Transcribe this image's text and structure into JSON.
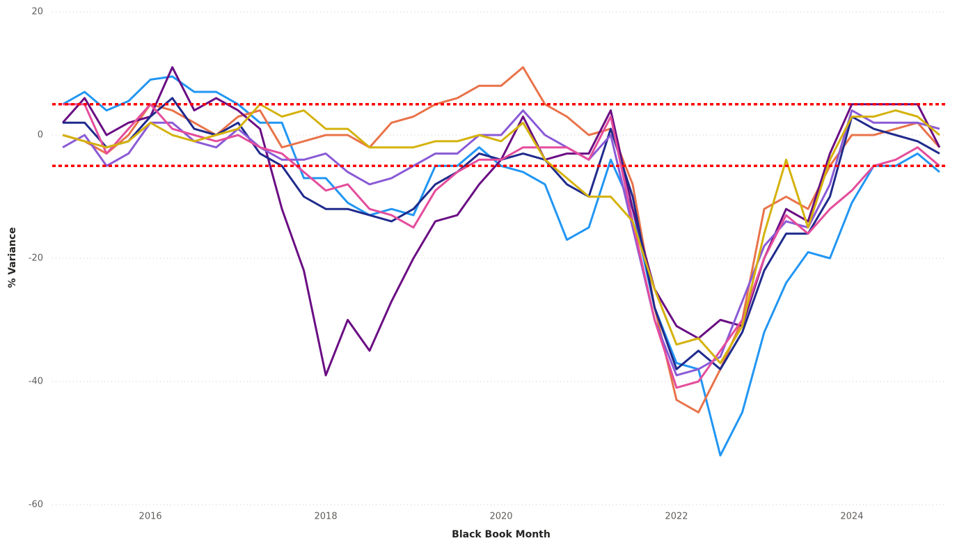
{
  "chart_data": {
    "type": "line",
    "xlabel": "Black Book Month",
    "ylabel": "% Variance",
    "x": [
      2015,
      2015.25,
      2015.5,
      2015.75,
      2016,
      2016.25,
      2016.5,
      2016.75,
      2017,
      2017.25,
      2017.5,
      2017.75,
      2018,
      2018.25,
      2018.5,
      2018.75,
      2019,
      2019.25,
      2019.5,
      2019.75,
      2020,
      2020.25,
      2020.5,
      2020.75,
      2021,
      2021.25,
      2021.5,
      2021.75,
      2022,
      2022.25,
      2022.5,
      2022.75,
      2023,
      2023.25,
      2023.5,
      2023.75,
      2024,
      2024.25,
      2024.5,
      2024.75,
      2025
    ],
    "series": [
      {
        "color": "#2196f3",
        "values": [
          5,
          7,
          4,
          5.5,
          9,
          9.5,
          7,
          7,
          5,
          2,
          2,
          -7,
          -7,
          -11,
          -13,
          -12,
          -13,
          -5,
          -5,
          -2,
          -5,
          -6,
          -8,
          -17,
          -15,
          -4,
          -12,
          -28,
          -37,
          -38,
          -52,
          -45,
          -32,
          -24,
          -19,
          -20,
          -11,
          -5,
          -5,
          -3,
          -6
        ]
      },
      {
        "color": "#e8734a",
        "values": [
          0,
          -1,
          -3,
          0,
          5,
          4,
          2,
          0,
          3,
          4,
          -2,
          -1,
          0,
          0,
          -2,
          2,
          3,
          5,
          6,
          8,
          8,
          11,
          5,
          3,
          0,
          1,
          -8,
          -28,
          -43,
          -45,
          -38,
          -30,
          -12,
          -10,
          -12,
          -5,
          0,
          0,
          1,
          2,
          -2
        ]
      },
      {
        "color": "#6a0d83",
        "values": [
          2,
          6,
          0,
          2,
          3,
          11,
          4,
          6,
          4,
          1,
          -12,
          -22,
          -39,
          -30,
          -35,
          -27,
          -20,
          -14,
          -13,
          -8,
          -4,
          3,
          -4,
          -3,
          -3,
          4,
          -12,
          -25,
          -31,
          -33,
          -30,
          -31,
          -20,
          -12,
          -14,
          -3,
          5,
          5,
          5,
          5,
          -2
        ]
      },
      {
        "color": "#1f2a8c",
        "values": [
          2,
          2,
          -2,
          -1,
          3,
          6,
          1,
          0,
          2,
          -3,
          -5,
          -10,
          -12,
          -12,
          -13,
          -14,
          -12,
          -8,
          -6,
          -3,
          -4,
          -3,
          -4,
          -8,
          -10,
          1,
          -10,
          -28,
          -38,
          -35,
          -38,
          -32,
          -22,
          -16,
          -16,
          -10,
          3,
          1,
          0,
          -1,
          -3
        ]
      },
      {
        "color": "#8a5ad6",
        "values": [
          -2,
          0,
          -5,
          -3,
          2,
          2,
          -1,
          -2,
          1,
          -2,
          -4,
          -4,
          -3,
          -6,
          -8,
          -7,
          -5,
          -3,
          -3,
          0,
          0,
          4,
          0,
          -2,
          -4,
          0,
          -15,
          -30,
          -39,
          -38,
          -36,
          -27,
          -18,
          -14,
          -15,
          -8,
          4,
          2,
          2,
          2,
          1
        ]
      },
      {
        "color": "#e44d9c",
        "values": [
          5,
          5,
          -3,
          1,
          5,
          1,
          0,
          -1,
          0,
          -2,
          -3,
          -6,
          -9,
          -8,
          -12,
          -13,
          -15,
          -9,
          -6,
          -4,
          -4,
          -2,
          -2,
          -2,
          -4,
          3,
          -14,
          -30,
          -41,
          -40,
          -35,
          -30,
          -20,
          -13,
          -16,
          -12,
          -9,
          -5,
          -4,
          -2,
          -5
        ]
      },
      {
        "color": "#d4b20c",
        "values": [
          0,
          -1,
          -2,
          -1,
          2,
          0,
          -1,
          0,
          1,
          5,
          3,
          4,
          1,
          1,
          -2,
          -2,
          -2,
          -1,
          -1,
          0,
          -1,
          2,
          -4,
          -7,
          -10,
          -10,
          -14,
          -25,
          -34,
          -33,
          -37,
          -31,
          -16,
          -4,
          -15,
          -4,
          3,
          3,
          4,
          3,
          0
        ]
      }
    ],
    "reference_lines": [
      {
        "value": 5,
        "color": "#ff0000"
      },
      {
        "value": -5,
        "color": "#ff0000"
      }
    ],
    "xlim": [
      2014.88,
      2025.08
    ],
    "xticks": [
      2016,
      2018,
      2020,
      2022,
      2024
    ],
    "ylim": [
      -60,
      20
    ],
    "yticks": [
      -60,
      -40,
      -20,
      0,
      20
    ],
    "grid": true
  }
}
